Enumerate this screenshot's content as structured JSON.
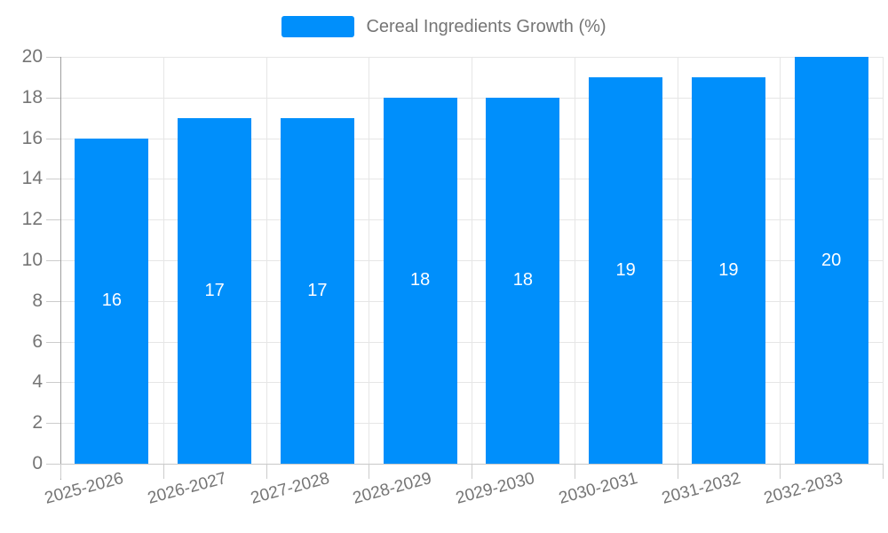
{
  "legend": {
    "label": "Cereal Ingredients Growth (%)"
  },
  "chart_data": {
    "type": "bar",
    "title": "Cereal Ingredients Growth (%)",
    "series": [
      {
        "name": "Cereal Ingredients Growth (%)",
        "values": [
          16,
          17,
          17,
          18,
          18,
          19,
          19,
          20
        ]
      }
    ],
    "categories": [
      "2025-2026",
      "2026-2027",
      "2027-2028",
      "2028-2029",
      "2029-2030",
      "2030-2031",
      "2031-2032",
      "2032-2033"
    ],
    "value_labels": [
      "16",
      "17",
      "17",
      "18",
      "18",
      "19",
      "19",
      "20"
    ],
    "xlabel": "",
    "ylabel": "",
    "ylim": [
      0,
      20
    ],
    "yticks": [
      0,
      2,
      4,
      6,
      8,
      10,
      12,
      14,
      16,
      18,
      20
    ],
    "grid": true,
    "legend_position": "top-center",
    "x_label_rotation_deg": -15,
    "colors": {
      "bar": "#008FFB",
      "axis_text": "#757575",
      "value_label": "#ffffff",
      "gridline": "#e6e6e6",
      "axis_line": "#9e9e9e"
    }
  }
}
